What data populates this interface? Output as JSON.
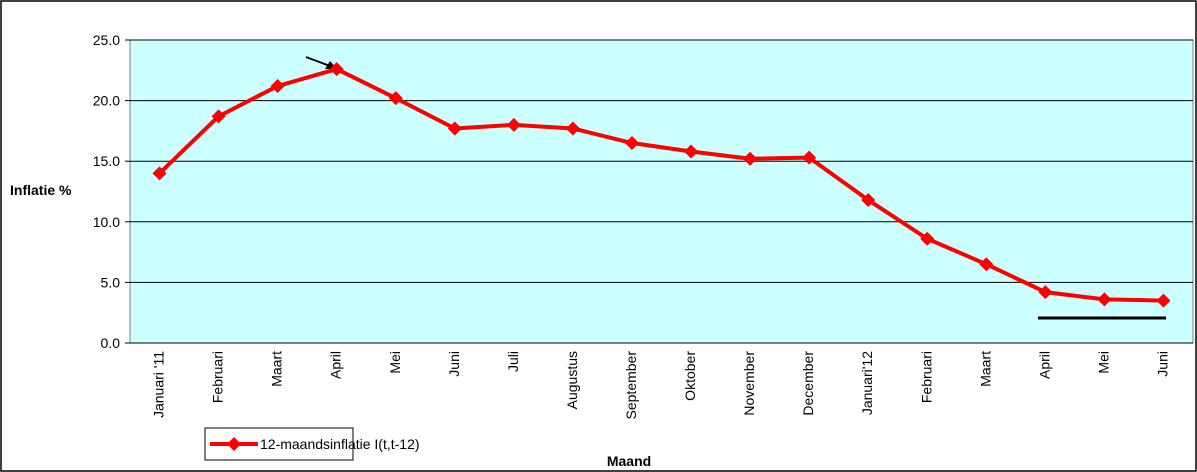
{
  "chart_data": {
    "type": "line",
    "y_label": "Inflatie %",
    "x_label": "Maand",
    "categories": [
      "Januari '11",
      "Februari",
      "Maart",
      "April",
      "Mei",
      "Juni",
      "Juli",
      "Augustus",
      "September",
      "Oktober",
      "November",
      "December",
      "Januari'12",
      "Februari",
      "Maart",
      "April",
      "Mei",
      "Juni"
    ],
    "series": [
      {
        "name": "12-maandsinflatie I(t,t-12)",
        "color": "#ff0000",
        "values": [
          14.0,
          18.7,
          21.2,
          22.6,
          20.2,
          17.7,
          18.0,
          17.7,
          16.5,
          15.8,
          15.2,
          15.3,
          11.8,
          8.6,
          6.5,
          4.2,
          3.6,
          3.5
        ]
      }
    ],
    "ylim": [
      0,
      25
    ],
    "yticks": [
      {
        "value": 0,
        "label": "0.0"
      },
      {
        "value": 5,
        "label": "5.0"
      },
      {
        "value": 10,
        "label": "10.0"
      },
      {
        "value": 15,
        "label": "15.0"
      },
      {
        "value": 20,
        "label": "20.0"
      },
      {
        "value": 25,
        "label": "25.0"
      }
    ],
    "grid": true,
    "background": "#ccffff"
  }
}
